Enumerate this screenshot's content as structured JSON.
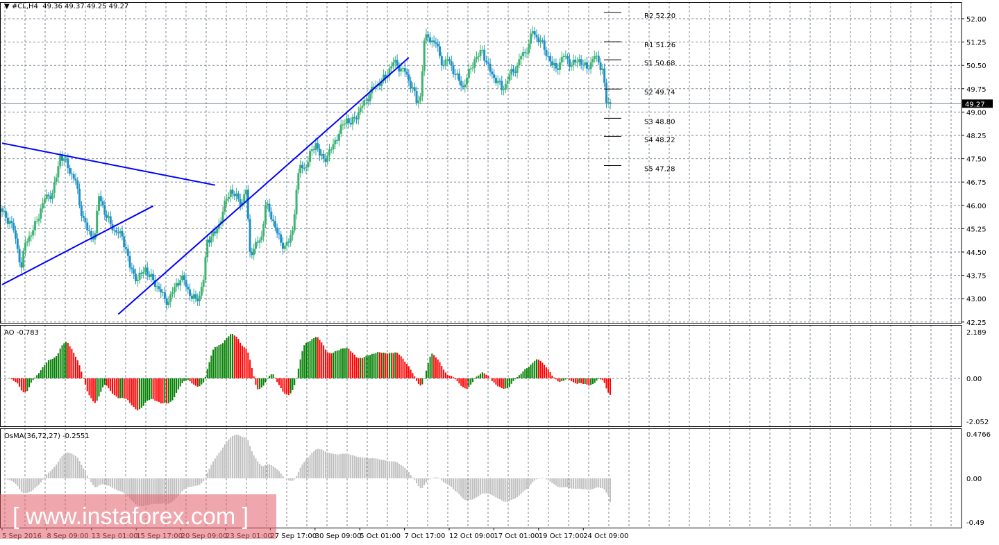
{
  "chart_data": {
    "type": "candlestick",
    "header": {
      "symbol_timeframe": "#CL,H4",
      "ohlc": "49.36 49.37 49.25 49.27",
      "menu_icon": "triangle-down-icon"
    },
    "closes": [
      45.8,
      45.6,
      45.5,
      45.2,
      44.6,
      44.0,
      44.8,
      45.0,
      45.2,
      45.5,
      45.9,
      46.2,
      46.3,
      46.4,
      46.9,
      47.6,
      47.5,
      47.2,
      47.0,
      46.8,
      46.0,
      45.6,
      45.2,
      45.0,
      45.1,
      46.3,
      46.0,
      45.6,
      45.4,
      45.2,
      45.1,
      45.0,
      44.6,
      44.0,
      43.8,
      43.6,
      43.8,
      44.0,
      43.7,
      43.6,
      43.4,
      43.2,
      43.0,
      42.9,
      43.2,
      43.5,
      43.6,
      43.6,
      43.3,
      43.0,
      43.0,
      43.1,
      43.6,
      44.9,
      45.0,
      45.1,
      45.4,
      45.8,
      46.2,
      46.5,
      46.3,
      46.2,
      46.1,
      46.5,
      44.5,
      44.6,
      44.8,
      45.0,
      46.0,
      45.8,
      45.5,
      45.1,
      44.8,
      44.7,
      44.8,
      45.2,
      46.5,
      47.3,
      47.2,
      47.4,
      47.8,
      48.0,
      47.6,
      47.5,
      47.6,
      47.8,
      48.1,
      48.3,
      48.6,
      48.8,
      48.6,
      48.8,
      49.0,
      49.2,
      49.4,
      49.6,
      49.8,
      49.9,
      50.0,
      50.1,
      50.4,
      50.6,
      50.5,
      50.4,
      50.3,
      50.0,
      49.8,
      49.3,
      49.5,
      51.3,
      51.4,
      51.3,
      51.2,
      50.8,
      50.5,
      50.7,
      50.5,
      50.2,
      50.0,
      49.8,
      50.1,
      50.4,
      50.7,
      50.8,
      51.0,
      50.6,
      50.3,
      50.1,
      50.0,
      49.7,
      49.9,
      50.2,
      50.3,
      50.5,
      50.8,
      50.9,
      51.2,
      51.6,
      51.4,
      51.3,
      51.0,
      50.8,
      50.5,
      50.4,
      50.6,
      50.8,
      50.7,
      50.5,
      50.6,
      50.7,
      50.5,
      50.4,
      50.6,
      50.8,
      50.6,
      50.4,
      49.3,
      49.27
    ],
    "price_axis": {
      "ticks": [
        "52.00",
        "51.25",
        "50.50",
        "49.75",
        "49.00",
        "48.25",
        "47.50",
        "46.75",
        "46.00",
        "45.25",
        "44.50",
        "43.75",
        "43.00",
        "42.25"
      ],
      "min": 42.25,
      "max": 52.0,
      "current": "49.27"
    },
    "time_axis": {
      "ticks": [
        "5 Sep 2016",
        "8 Sep 09:00",
        "13 Sep 01:00",
        "15 Sep 17:00",
        "20 Sep 09:00",
        "23 Sep 01:00",
        "27 Sep 17:00",
        "30 Sep 09:00",
        "5 Oct 01:00",
        "7 Oct 17:00",
        "12 Oct 09:00",
        "17 Oct 01:00",
        "19 Oct 17:00",
        "24 Oct 09:00"
      ]
    },
    "trendlines": [
      {
        "from": [
          0,
          48.0
        ],
        "to": [
          110,
          46.65
        ]
      },
      {
        "from": [
          0,
          43.45
        ],
        "to": [
          78,
          45.98
        ]
      },
      {
        "from": [
          60,
          42.5
        ],
        "to": [
          210,
          50.75
        ]
      }
    ],
    "pivots": [
      {
        "label": "R2 52.20",
        "value": 52.2
      },
      {
        "label": "R1 51.26",
        "value": 51.26
      },
      {
        "label": "S1 50.68",
        "value": 50.68
      },
      {
        "label": "S2 49.74",
        "value": 49.74
      },
      {
        "label": "S3 48.80",
        "value": 48.8
      },
      {
        "label": "S4 48.22",
        "value": 48.22
      },
      {
        "label": "S5 47.28",
        "value": 47.28
      }
    ],
    "ao": {
      "label": "AO -0.783",
      "last": -0.783,
      "ticks": [
        "2.189",
        "0.00",
        "-2.052"
      ],
      "max": 2.189,
      "min": -2.052
    },
    "osma": {
      "label": "OsMA(36,72,27) -0.2551",
      "last": -0.2551,
      "ticks": [
        "0.4766",
        "0.00",
        "-0.49"
      ],
      "max": 0.4766,
      "min": -0.49
    },
    "colors": {
      "bull": "#3cb371",
      "bear": "#1e90c8",
      "trend": "#0000ff",
      "ao_up": "#008000",
      "ao_down": "#ff0000",
      "osma": "#c0c0c0",
      "grid": "#7a8591"
    },
    "grid": true
  },
  "watermark": "[ www.instaforex.com ]"
}
